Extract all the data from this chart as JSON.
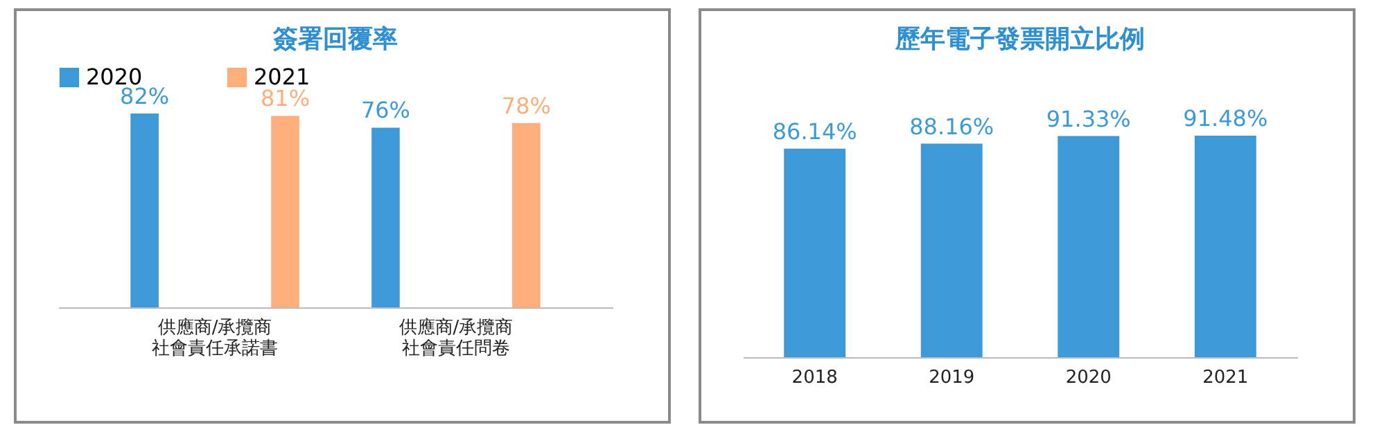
{
  "chart_data": [
    {
      "type": "bar",
      "title": "簽署回覆率",
      "categories": [
        "供應商/承攬商社會責任承諾書",
        "供應商/承攬商社會責任問卷"
      ],
      "legend": "top",
      "series": [
        {
          "name": "2020",
          "color": "#3d9ad6",
          "values": [
            82,
            76
          ],
          "value_labels": [
            "82%",
            "76%"
          ]
        },
        {
          "name": "2021",
          "color": "#fdae7a",
          "values": [
            81,
            78
          ],
          "value_labels": [
            "81%",
            "78%"
          ]
        }
      ]
    },
    {
      "type": "bar",
      "title": "歷年電子發票開立比例",
      "categories": [
        "2018",
        "2019",
        "2020",
        "2021"
      ],
      "series": [
        {
          "color": "#3d9ad6",
          "values": [
            86.14,
            88.16,
            91.33,
            91.48
          ],
          "value_labels": [
            "86.14%",
            "88.16%",
            "91.33%",
            "91.48%"
          ]
        }
      ]
    }
  ]
}
